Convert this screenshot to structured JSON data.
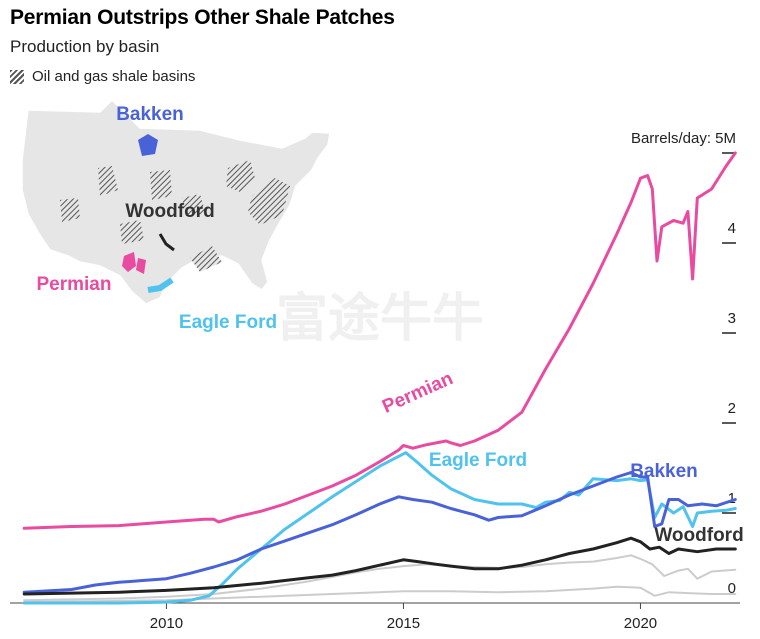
{
  "header": {
    "title": "Permian Outstrips Other Shale Patches",
    "subtitle": "Production by basin",
    "legend_label": "Oil and gas shale basins"
  },
  "watermark": "富途牛牛",
  "map": {
    "labels": [
      "Bakken",
      "Woodford",
      "Permian",
      "Eagle Ford"
    ]
  },
  "colors": {
    "permian": "#e84b9f",
    "eagle_ford": "#4fc3ee",
    "bakken": "#4a62d8",
    "woodford": "#222222",
    "other": "#cccccc",
    "map_land": "#e6e6e6"
  },
  "chart_data": {
    "type": "line",
    "title": "Permian Outstrips Other Shale Patches",
    "subtitle": "Production by basin",
    "ylabel": "Barrels/day",
    "y_unit_label": "Barrels/day: 5M",
    "xlim": [
      2006.7,
      2022.1
    ],
    "ylim": [
      0,
      5
    ],
    "x_ticks": [
      2010,
      2015,
      2020
    ],
    "y_ticks": [
      "0",
      "1",
      "2",
      "3",
      "4",
      "Barrels/day: 5M"
    ],
    "series": [
      {
        "name": "Permian",
        "points": [
          [
            2007.0,
            0.83
          ],
          [
            2008.0,
            0.85
          ],
          [
            2009.0,
            0.86
          ],
          [
            2010.0,
            0.9
          ],
          [
            2010.8,
            0.93
          ],
          [
            2011.0,
            0.93
          ],
          [
            2011.1,
            0.9
          ],
          [
            2011.5,
            0.96
          ],
          [
            2012.0,
            1.02
          ],
          [
            2012.5,
            1.1
          ],
          [
            2013.0,
            1.2
          ],
          [
            2013.5,
            1.3
          ],
          [
            2014.0,
            1.42
          ],
          [
            2014.5,
            1.57
          ],
          [
            2014.9,
            1.7
          ],
          [
            2015.0,
            1.75
          ],
          [
            2015.2,
            1.72
          ],
          [
            2015.5,
            1.76
          ],
          [
            2015.9,
            1.8
          ],
          [
            2016.0,
            1.78
          ],
          [
            2016.2,
            1.75
          ],
          [
            2016.5,
            1.8
          ],
          [
            2017.0,
            1.92
          ],
          [
            2017.5,
            2.12
          ],
          [
            2018.0,
            2.6
          ],
          [
            2018.5,
            3.05
          ],
          [
            2019.0,
            3.55
          ],
          [
            2019.5,
            4.1
          ],
          [
            2019.8,
            4.45
          ],
          [
            2020.0,
            4.72
          ],
          [
            2020.15,
            4.75
          ],
          [
            2020.25,
            4.6
          ],
          [
            2020.35,
            3.8
          ],
          [
            2020.45,
            4.18
          ],
          [
            2020.7,
            4.25
          ],
          [
            2020.9,
            4.22
          ],
          [
            2021.0,
            4.35
          ],
          [
            2021.1,
            3.6
          ],
          [
            2021.2,
            4.5
          ],
          [
            2021.5,
            4.6
          ],
          [
            2021.8,
            4.85
          ],
          [
            2022.0,
            5.0
          ]
        ]
      },
      {
        "name": "Eagle Ford",
        "points": [
          [
            2007.0,
            0.0
          ],
          [
            2009.0,
            0.0
          ],
          [
            2010.0,
            0.01
          ],
          [
            2010.5,
            0.03
          ],
          [
            2010.9,
            0.08
          ],
          [
            2011.2,
            0.22
          ],
          [
            2011.5,
            0.38
          ],
          [
            2012.0,
            0.6
          ],
          [
            2012.5,
            0.82
          ],
          [
            2013.0,
            1.0
          ],
          [
            2013.5,
            1.18
          ],
          [
            2014.0,
            1.35
          ],
          [
            2014.5,
            1.52
          ],
          [
            2014.9,
            1.63
          ],
          [
            2015.05,
            1.67
          ],
          [
            2015.3,
            1.56
          ],
          [
            2015.6,
            1.42
          ],
          [
            2016.0,
            1.27
          ],
          [
            2016.5,
            1.15
          ],
          [
            2017.0,
            1.1
          ],
          [
            2017.5,
            1.1
          ],
          [
            2017.8,
            1.06
          ],
          [
            2018.0,
            1.12
          ],
          [
            2018.3,
            1.14
          ],
          [
            2018.5,
            1.23
          ],
          [
            2018.7,
            1.2
          ],
          [
            2019.0,
            1.38
          ],
          [
            2019.5,
            1.36
          ],
          [
            2019.8,
            1.38
          ],
          [
            2020.0,
            1.36
          ],
          [
            2020.15,
            1.37
          ],
          [
            2020.3,
            0.95
          ],
          [
            2020.45,
            1.1
          ],
          [
            2020.7,
            1.0
          ],
          [
            2020.9,
            1.07
          ],
          [
            2021.1,
            0.85
          ],
          [
            2021.2,
            1.0
          ],
          [
            2021.5,
            1.02
          ],
          [
            2021.8,
            1.03
          ],
          [
            2022.0,
            1.05
          ]
        ]
      },
      {
        "name": "Bakken",
        "points": [
          [
            2007.0,
            0.12
          ],
          [
            2008.0,
            0.15
          ],
          [
            2008.5,
            0.2
          ],
          [
            2009.0,
            0.23
          ],
          [
            2009.5,
            0.25
          ],
          [
            2010.0,
            0.27
          ],
          [
            2010.5,
            0.33
          ],
          [
            2011.0,
            0.4
          ],
          [
            2011.5,
            0.48
          ],
          [
            2012.0,
            0.6
          ],
          [
            2012.5,
            0.69
          ],
          [
            2013.0,
            0.78
          ],
          [
            2013.5,
            0.87
          ],
          [
            2014.0,
            0.98
          ],
          [
            2014.5,
            1.1
          ],
          [
            2014.9,
            1.18
          ],
          [
            2015.2,
            1.15
          ],
          [
            2015.6,
            1.12
          ],
          [
            2016.0,
            1.05
          ],
          [
            2016.5,
            0.98
          ],
          [
            2016.8,
            0.92
          ],
          [
            2017.0,
            0.95
          ],
          [
            2017.5,
            0.97
          ],
          [
            2018.0,
            1.08
          ],
          [
            2018.5,
            1.2
          ],
          [
            2019.0,
            1.3
          ],
          [
            2019.5,
            1.4
          ],
          [
            2019.8,
            1.45
          ],
          [
            2020.0,
            1.4
          ],
          [
            2020.15,
            1.4
          ],
          [
            2020.3,
            0.85
          ],
          [
            2020.45,
            0.88
          ],
          [
            2020.6,
            1.15
          ],
          [
            2020.8,
            1.15
          ],
          [
            2021.0,
            1.08
          ],
          [
            2021.3,
            1.1
          ],
          [
            2021.6,
            1.08
          ],
          [
            2022.0,
            1.15
          ]
        ]
      },
      {
        "name": "Woodford",
        "points": [
          [
            2007.0,
            0.1
          ],
          [
            2008.0,
            0.11
          ],
          [
            2009.0,
            0.12
          ],
          [
            2010.0,
            0.14
          ],
          [
            2011.0,
            0.17
          ],
          [
            2012.0,
            0.22
          ],
          [
            2013.0,
            0.28
          ],
          [
            2013.5,
            0.31
          ],
          [
            2014.0,
            0.36
          ],
          [
            2014.5,
            0.42
          ],
          [
            2015.0,
            0.48
          ],
          [
            2015.3,
            0.46
          ],
          [
            2015.7,
            0.43
          ],
          [
            2016.0,
            0.41
          ],
          [
            2016.5,
            0.38
          ],
          [
            2017.0,
            0.38
          ],
          [
            2017.5,
            0.42
          ],
          [
            2018.0,
            0.48
          ],
          [
            2018.5,
            0.55
          ],
          [
            2019.0,
            0.6
          ],
          [
            2019.5,
            0.67
          ],
          [
            2019.8,
            0.72
          ],
          [
            2020.0,
            0.68
          ],
          [
            2020.2,
            0.6
          ],
          [
            2020.4,
            0.62
          ],
          [
            2020.6,
            0.55
          ],
          [
            2020.8,
            0.6
          ],
          [
            2021.2,
            0.57
          ],
          [
            2021.6,
            0.6
          ],
          [
            2022.0,
            0.6
          ]
        ]
      },
      {
        "points": [
          [
            2007.0,
            0.03
          ],
          [
            2009.0,
            0.05
          ],
          [
            2010.0,
            0.07
          ],
          [
            2011.0,
            0.1
          ],
          [
            2012.0,
            0.16
          ],
          [
            2013.0,
            0.24
          ],
          [
            2014.0,
            0.34
          ],
          [
            2014.5,
            0.38
          ],
          [
            2015.0,
            0.41
          ],
          [
            2015.5,
            0.43
          ],
          [
            2016.0,
            0.41
          ],
          [
            2016.5,
            0.4
          ],
          [
            2017.0,
            0.39
          ],
          [
            2017.5,
            0.4
          ],
          [
            2018.0,
            0.43
          ],
          [
            2018.5,
            0.45
          ],
          [
            2019.0,
            0.46
          ],
          [
            2019.5,
            0.5
          ],
          [
            2019.8,
            0.53
          ],
          [
            2020.0,
            0.49
          ],
          [
            2020.25,
            0.43
          ],
          [
            2020.5,
            0.3
          ],
          [
            2020.8,
            0.36
          ],
          [
            2021.0,
            0.38
          ],
          [
            2021.2,
            0.27
          ],
          [
            2021.5,
            0.35
          ],
          [
            2022.0,
            0.37
          ]
        ]
      },
      {
        "points": [
          [
            2007.0,
            0.01
          ],
          [
            2010.0,
            0.03
          ],
          [
            2012.0,
            0.07
          ],
          [
            2013.5,
            0.1
          ],
          [
            2015.0,
            0.13
          ],
          [
            2016.0,
            0.13
          ],
          [
            2017.0,
            0.12
          ],
          [
            2018.0,
            0.13
          ],
          [
            2019.0,
            0.16
          ],
          [
            2019.5,
            0.18
          ],
          [
            2020.0,
            0.17
          ],
          [
            2020.3,
            0.08
          ],
          [
            2020.6,
            0.12
          ],
          [
            2021.0,
            0.11
          ],
          [
            2021.5,
            0.1
          ],
          [
            2022.0,
            0.1
          ]
        ]
      }
    ],
    "series_labels": [
      "Permian",
      "Eagle Ford",
      "Bakken",
      "Woodford"
    ],
    "grid": false,
    "legend": "inline labels"
  }
}
